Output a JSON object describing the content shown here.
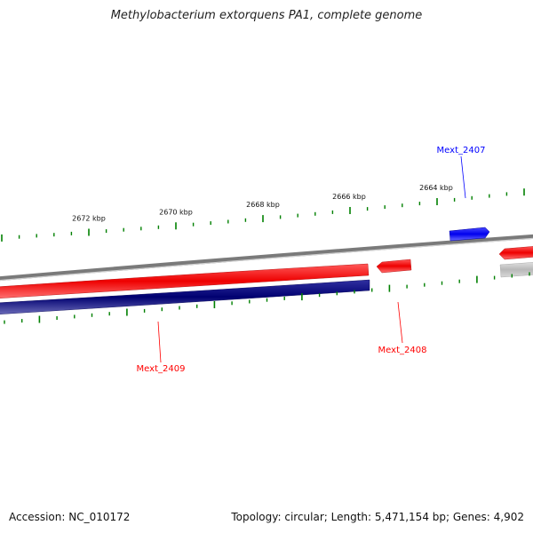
{
  "title": "Methylobacterium extorquens PA1, complete genome",
  "footer": {
    "accession": "Accession: NC_010172",
    "stats": "Topology: circular; Length: 5,471,154 bp; Genes: 4,902"
  },
  "scale_labels": [
    "2664 kbp",
    "2666 kbp",
    "2668 kbp",
    "2670 kbp",
    "2672 kbp"
  ],
  "genes": [
    {
      "name": "Mext_2407",
      "strand": "forward",
      "color": "#0000ff"
    },
    {
      "name": "Mext_2408",
      "strand": "reverse",
      "color": "#ff0000"
    },
    {
      "name": "Mext_2409",
      "strand": "reverse",
      "color": "#ff0000"
    }
  ],
  "colors": {
    "forward_cds": "#0000ff",
    "reverse_cds": "#ff0000",
    "orf_track": "#000080",
    "genome_backbone": "#808080",
    "tick": "#008000"
  }
}
